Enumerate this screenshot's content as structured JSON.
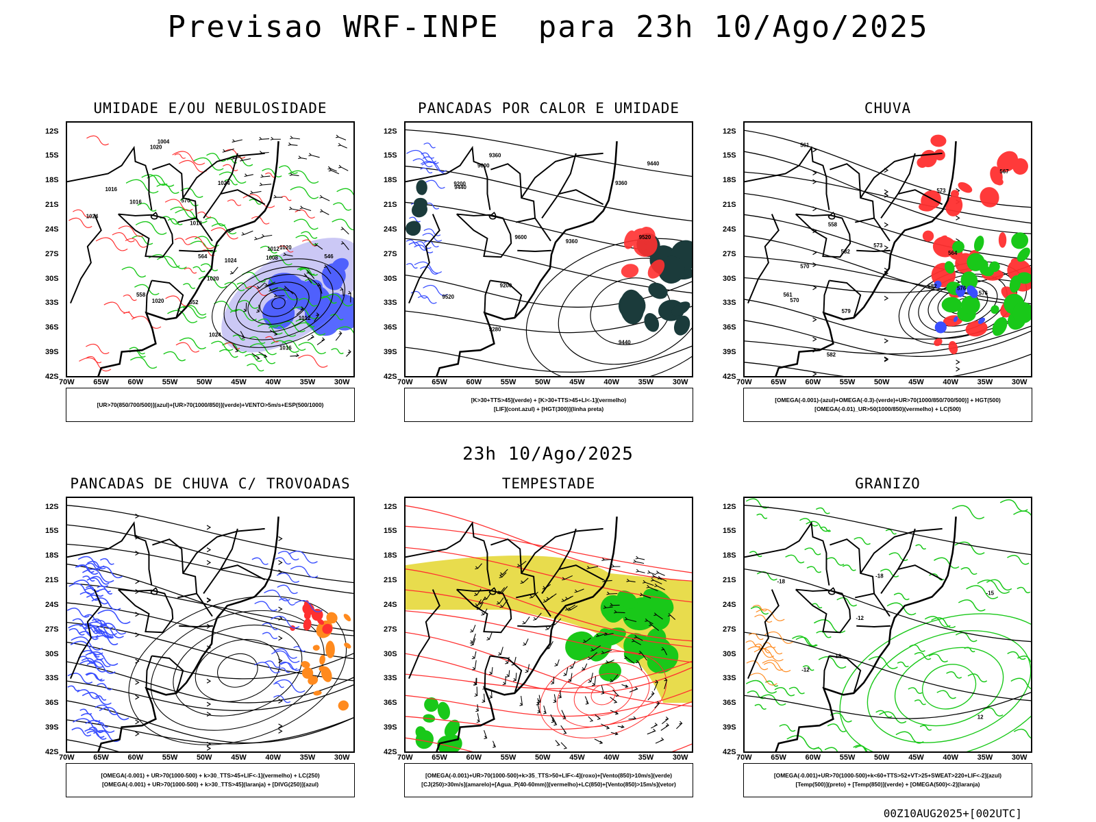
{
  "title": "Previsao WRF-INPE  para 23h 10/Ago/2025",
  "subtitle_mid": "23h 10/Ago/2025",
  "footer": "00Z10AUG2025+[002UTC]",
  "lat_ticks": [
    "12S",
    "15S",
    "18S",
    "21S",
    "24S",
    "27S",
    "30S",
    "33S",
    "36S",
    "39S",
    "42S"
  ],
  "lon_ticks": [
    "70W",
    "65W",
    "60W",
    "55W",
    "50W",
    "45W",
    "40W",
    "35W",
    "30W"
  ],
  "panels": [
    {
      "title": "UMIDADE E/OU NEBULOSIDADE",
      "legend": [
        "[UR>70(850/700/500)](azul)+[UR>70(1000/850)](verde)+VENTO>5m/s+ESP(500/1000)"
      ],
      "contour_labels": [
        "1016",
        "1016",
        "1016",
        "1020",
        "1020",
        "1024",
        "1024",
        "1024",
        "1012",
        "1008",
        "1004",
        "1012",
        "1016",
        "1020",
        "1020",
        "1024",
        "570",
        "564",
        "558",
        "552",
        "546"
      ]
    },
    {
      "title": "PANCADAS POR CALOR E UMIDADE",
      "legend": [
        "[K>30+TTS>45](verde) + [K>30+TTS>45+LI<-1](vermelho)",
        "[LIF](cont.azul) + [HGT(300)](linha preta)"
      ],
      "contour_labels": [
        "9600",
        "9520",
        "9600",
        "9440",
        "9520",
        "9440",
        "9360",
        "9280",
        "9200",
        "9440",
        "9360",
        "9360",
        "9200"
      ]
    },
    {
      "title": "CHUVA",
      "legend": [
        "[OMEGA(-0.001)-(azul)+OMEGA(-0.3)-(verde)+UR>70(1000/850/700/500)] + HGT(500)",
        "[OMEGA(-0.01)_UR>50(1000/850)(vermelho) + LC(500)"
      ],
      "contour_labels": [
        "582",
        "582",
        "582",
        "579",
        "576",
        "573",
        "570",
        "567",
        "564",
        "561",
        "558",
        "576",
        "573",
        "570",
        "561"
      ]
    },
    {
      "title": "PANCADAS DE CHUVA C/ TROVOADAS",
      "legend": [
        "[OMEGA(-0.001) + UR>70(1000-500) + k>30_TTS>45+LIF<-1](vermelho) + LC(250)",
        "[OMEGA(-0.001) + UR>70(1000-500) + k>30_TTS>45](laranja) + [DIVG(250)](azul)"
      ],
      "contour_labels": []
    },
    {
      "title": "TEMPESTADE",
      "legend": [
        "[OMEGA(-0.001)+UR>70(1000-500)+k>35_TTS>50+LIF<-4](roxo)+[Vento(850)>10m/s](verde)",
        "[CJ(250)>30m/s](amarelo)+[Agua_P(40-60mm)](vermelho)+LC(850)+[Vento(850)>15m/s](vetor)"
      ],
      "contour_labels": []
    },
    {
      "title": "GRANIZO",
      "legend": [
        "[OMEGA(-0.001)+UR>70(1000-500)+k<60+TTS>52+VT>25+SWEAT>220+LIF<-2](azul)",
        "[Temp(500)](preto) + [Temp(850)](verde) + [OMEGA(500)<-2](laranja)"
      ],
      "contour_labels": [
        "-12",
        "-18",
        "-12",
        "-15",
        "-18",
        "-18",
        "12"
      ]
    }
  ],
  "colors": {
    "blue": "#3a4fff",
    "green": "#19c819",
    "red": "#ff3030",
    "orange": "#ff8a1e",
    "yellow": "#e6d83a",
    "darkteal": "#1b3b3b",
    "lavender": "#b9b6f2"
  }
}
